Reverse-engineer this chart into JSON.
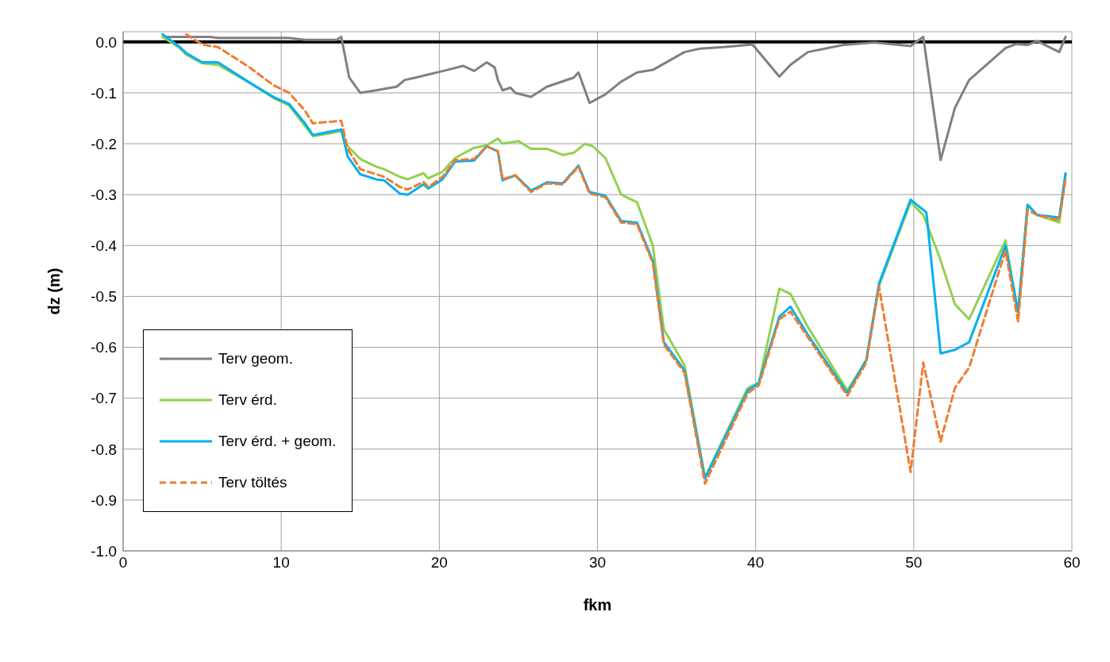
{
  "chart_data": {
    "type": "line",
    "xlabel": "fkm",
    "ylabel": "dz (m)",
    "xlim": [
      0,
      60
    ],
    "xticks": [
      0,
      10,
      20,
      30,
      40,
      50,
      60
    ],
    "ylim": [
      -1,
      0.02
    ],
    "yticks": [
      {
        "value": -1,
        "label": "-1.0"
      },
      {
        "value": -0.9,
        "label": "-0.9"
      },
      {
        "value": -0.8,
        "label": "-0.8"
      },
      {
        "value": -0.7,
        "label": "-0.7"
      },
      {
        "value": -0.6,
        "label": "-0.6"
      },
      {
        "value": -0.5,
        "label": "-0.5"
      },
      {
        "value": -0.4,
        "label": "-0.4"
      },
      {
        "value": -0.3,
        "label": "-0.3"
      },
      {
        "value": -0.2,
        "label": "-0.2"
      },
      {
        "value": -0.1,
        "label": "-0.1"
      },
      {
        "value": 0,
        "label": "0.0"
      }
    ],
    "grid": true,
    "legend": "bottom left",
    "marker": "none",
    "ref_lines": [
      {
        "axis": "y",
        "value": 0,
        "color": "#000000"
      }
    ],
    "series": [
      {
        "name": "Terv geom.",
        "color": "#808080",
        "line_style": "solid",
        "x": [
          2.5,
          5.5,
          6,
          10.5,
          11.5,
          13.5,
          13.8,
          14.3,
          15,
          16,
          17.3,
          17.8,
          18.5,
          20.5,
          21.5,
          22.2,
          23,
          23.5,
          23.7,
          24,
          24.5,
          24.8,
          25.8,
          26.8,
          28.5,
          28.8,
          29.5,
          30.5,
          31.5,
          32.5,
          33.5,
          35.5,
          36.5,
          38,
          39.8,
          41.5,
          42.2,
          43.3,
          45.5,
          47.5,
          49.8,
          50.6,
          51.7,
          52.6,
          53.5,
          55.8,
          56.5,
          57.2,
          57.8,
          59.2,
          59.6
        ],
        "values": [
          0.01,
          0.01,
          0.008,
          0.008,
          0.004,
          0.004,
          0.01,
          -0.07,
          -0.1,
          -0.095,
          -0.088,
          -0.075,
          -0.07,
          -0.055,
          -0.047,
          -0.057,
          -0.04,
          -0.05,
          -0.075,
          -0.095,
          -0.09,
          -0.1,
          -0.108,
          -0.088,
          -0.07,
          -0.06,
          -0.12,
          -0.103,
          -0.078,
          -0.06,
          -0.055,
          -0.02,
          -0.013,
          -0.01,
          -0.005,
          -0.068,
          -0.045,
          -0.02,
          -0.006,
          -0.001,
          -0.008,
          0.01,
          -0.232,
          -0.13,
          -0.075,
          -0.012,
          -0.004,
          -0.006,
          0.002,
          -0.02,
          0.01
        ]
      },
      {
        "name": "Terv érd.",
        "color": "#92d050",
        "line_style": "solid",
        "x": [
          2.5,
          3.5,
          4,
          5,
          6,
          8,
          9.5,
          10.5,
          11.5,
          12,
          13,
          13.8,
          14.2,
          15,
          16,
          16.5,
          17.5,
          18,
          19,
          19.3,
          20.2,
          21,
          22.2,
          23,
          23.7,
          24,
          25,
          25.8,
          26.8,
          27.8,
          28.5,
          29.2,
          29.7,
          30.5,
          31.5,
          32.5,
          33.5,
          34.2,
          35.5,
          36.8,
          39.5,
          40.2,
          41.5,
          42.2,
          43.3,
          45.8,
          47,
          47.8,
          49.8,
          50.6,
          51.6,
          52.6,
          53.5,
          55.8,
          56.6,
          57.2,
          57.8,
          59.2,
          59.6
        ],
        "values": [
          0.01,
          -0.01,
          -0.025,
          -0.042,
          -0.045,
          -0.08,
          -0.11,
          -0.125,
          -0.165,
          -0.185,
          -0.18,
          -0.175,
          -0.205,
          -0.23,
          -0.245,
          -0.25,
          -0.265,
          -0.27,
          -0.258,
          -0.268,
          -0.255,
          -0.228,
          -0.208,
          -0.203,
          -0.19,
          -0.2,
          -0.195,
          -0.21,
          -0.21,
          -0.222,
          -0.218,
          -0.2,
          -0.205,
          -0.228,
          -0.3,
          -0.315,
          -0.4,
          -0.565,
          -0.635,
          -0.855,
          -0.68,
          -0.67,
          -0.485,
          -0.495,
          -0.56,
          -0.685,
          -0.625,
          -0.48,
          -0.315,
          -0.34,
          -0.42,
          -0.515,
          -0.545,
          -0.39,
          -0.535,
          -0.32,
          -0.34,
          -0.355,
          -0.26
        ]
      },
      {
        "name": "Terv érd. + geom.",
        "color": "#00b0f0",
        "line_style": "solid",
        "x": [
          2.5,
          3.5,
          4,
          5,
          6,
          8,
          9.5,
          10.5,
          11.5,
          12,
          13,
          13.8,
          14.2,
          15,
          16,
          16.5,
          17.5,
          18,
          19,
          19.3,
          20.2,
          21,
          22.2,
          23,
          23.7,
          24,
          24.8,
          25.8,
          26.8,
          27.8,
          28.8,
          29.5,
          30.5,
          31.5,
          32.5,
          33.5,
          34.2,
          35.5,
          36.8,
          39.5,
          40.2,
          41.5,
          42.2,
          43.3,
          45.8,
          47,
          47.8,
          49.8,
          50.8,
          51.7,
          52.6,
          53.5,
          55.8,
          56.6,
          57.2,
          57.8,
          59.2,
          59.6
        ],
        "values": [
          0.015,
          -0.008,
          -0.022,
          -0.04,
          -0.04,
          -0.08,
          -0.108,
          -0.122,
          -0.16,
          -0.183,
          -0.177,
          -0.172,
          -0.225,
          -0.26,
          -0.27,
          -0.272,
          -0.298,
          -0.3,
          -0.28,
          -0.288,
          -0.27,
          -0.235,
          -0.233,
          -0.205,
          -0.215,
          -0.272,
          -0.262,
          -0.292,
          -0.276,
          -0.278,
          -0.243,
          -0.295,
          -0.302,
          -0.352,
          -0.355,
          -0.43,
          -0.59,
          -0.645,
          -0.858,
          -0.685,
          -0.67,
          -0.54,
          -0.52,
          -0.575,
          -0.69,
          -0.625,
          -0.475,
          -0.31,
          -0.335,
          -0.612,
          -0.605,
          -0.59,
          -0.4,
          -0.53,
          -0.32,
          -0.34,
          -0.345,
          -0.258
        ]
      },
      {
        "name": "Terv töltés",
        "color": "#ed7d31",
        "line_style": "dashed",
        "x": [
          4,
          5,
          6,
          7,
          8,
          9.5,
          10.5,
          11.5,
          12,
          13,
          13.8,
          14.2,
          15,
          16,
          16.5,
          17.5,
          18,
          19,
          19.3,
          20.2,
          21,
          22.2,
          23,
          23.7,
          24,
          24.8,
          25.8,
          26.8,
          27.8,
          28.8,
          29.5,
          30.5,
          31.5,
          32.5,
          33.5,
          34.2,
          35.5,
          36.8,
          39.5,
          40.2,
          41.5,
          42.2,
          43.3,
          45.8,
          47,
          47.8,
          49.8,
          50.6,
          51.7,
          52.6,
          53.5,
          55.8,
          56.6,
          57.2,
          57.8,
          59.2,
          59.6
        ],
        "values": [
          0.015,
          -0.005,
          -0.01,
          -0.03,
          -0.05,
          -0.085,
          -0.1,
          -0.135,
          -0.16,
          -0.157,
          -0.155,
          -0.21,
          -0.25,
          -0.26,
          -0.265,
          -0.285,
          -0.29,
          -0.275,
          -0.285,
          -0.265,
          -0.232,
          -0.23,
          -0.205,
          -0.215,
          -0.27,
          -0.262,
          -0.295,
          -0.278,
          -0.28,
          -0.245,
          -0.298,
          -0.305,
          -0.355,
          -0.358,
          -0.435,
          -0.595,
          -0.65,
          -0.868,
          -0.69,
          -0.675,
          -0.545,
          -0.53,
          -0.58,
          -0.695,
          -0.63,
          -0.48,
          -0.845,
          -0.63,
          -0.785,
          -0.68,
          -0.64,
          -0.41,
          -0.55,
          -0.33,
          -0.34,
          -0.35,
          -0.27
        ]
      }
    ]
  }
}
